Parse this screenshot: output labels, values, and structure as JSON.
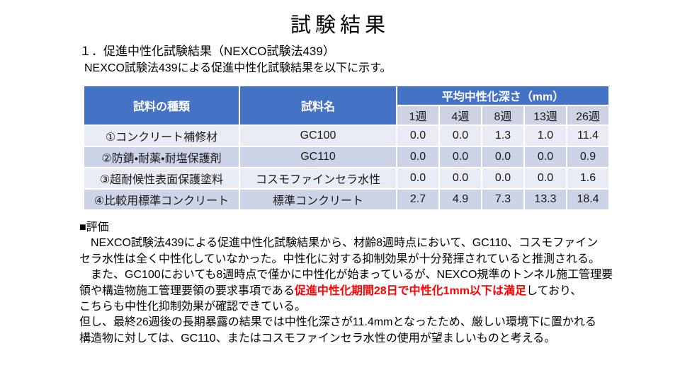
{
  "page": {
    "title": "試験結果",
    "section_heading": "１．促進中性化試験結果（NEXCO試験法439）",
    "section_intro": "NEXCO試験法439による促進中性化試験結果を以下に示す。"
  },
  "table": {
    "col_headers": {
      "sample_type": "試料の種類",
      "sample_name": "試料名",
      "depth_group": "平均中性化深さ（mm）"
    },
    "week_headers": [
      "1週",
      "4週",
      "8週",
      "13週",
      "26週"
    ],
    "rows": [
      {
        "type": "①コンクリート補修材",
        "name": "GC100",
        "values": [
          "0.0",
          "0.0",
          "1.3",
          "1.0",
          "11.4"
        ]
      },
      {
        "type": "②防錆・耐薬・耐塩保護剤",
        "name": "GC110",
        "values": [
          "0.0",
          "0.0",
          "0.0",
          "0.0",
          "0.9"
        ]
      },
      {
        "type": "③超耐候性表面保護塗料",
        "name": "コスモファインセラ水性",
        "values": [
          "0.0",
          "0.0",
          "0.0",
          "0.0",
          "1.6"
        ]
      },
      {
        "type": "④比較用標準コンクリート",
        "name": "標準コンクリート",
        "values": [
          "2.7",
          "4.9",
          "7.3",
          "13.3",
          "18.4"
        ]
      }
    ]
  },
  "evaluation": {
    "heading": "■評価",
    "lines": [
      [
        {
          "text": "　NEXCO試験法439による促進中性化試験結果から、材齢8週時点において、GC110、コスモファイン"
        }
      ],
      [
        {
          "text": "セラ水性は全く中性化していなかった。中性化に対する抑制効果が十分発揮されていると推測される。"
        }
      ],
      [
        {
          "text": "　また、GC100においても8週時点で僅かに中性化が始まっているが、NEXCO規準のトンネル施工管理要"
        }
      ],
      [
        {
          "text": "領や構造物施工管理要領の要求事項である"
        },
        {
          "text": "促進中性化期間28日で中性化1mm以下は満足",
          "red": true
        },
        {
          "text": "しており、"
        }
      ],
      [
        {
          "text": "こちらも中性化抑制効果が確認できている。"
        }
      ],
      [
        {
          "text": "但し、最終26週後の長期暴露の結果では中性化深さが11.4mmとなったため、厳しい環境下に置かれる"
        }
      ],
      [
        {
          "text": "構造物に対しては、GC110、またはコスモファインセラ水性の使用が望ましいものと考える。"
        }
      ]
    ]
  },
  "colors": {
    "header_bg": "#4472C4",
    "header_text": "#FFFFFF",
    "band_light": "#E9EBF5",
    "band_dark": "#CED4E8",
    "subheader_bg": "#CDD3E2",
    "red_text": "#FF0000"
  }
}
